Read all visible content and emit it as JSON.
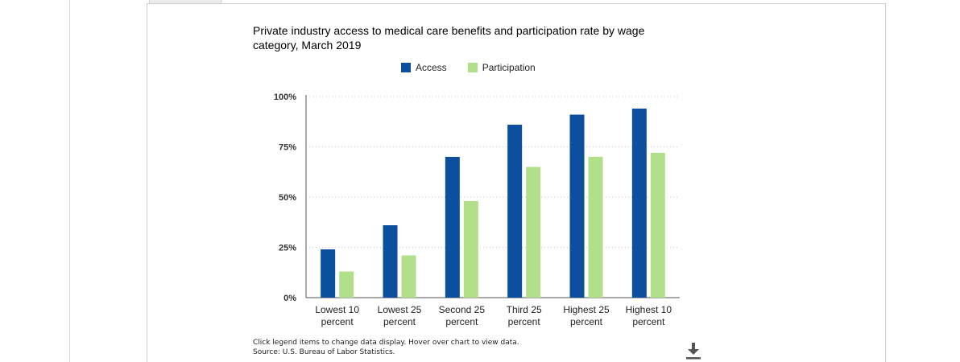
{
  "chart_title": "Private industry access to medical care benefits and participation rate by wage category, March 2019",
  "legend": [
    {
      "label": "Access",
      "color": "#0b4f9e"
    },
    {
      "label": "Participation",
      "color": "#b2df8a"
    }
  ],
  "notes": {
    "interaction": "Click legend items to change data display. Hover over chart to view data.",
    "source": "Source: U.S. Bureau of Labor Statistics."
  },
  "icons": {
    "download": "download-icon"
  },
  "chart_data": {
    "type": "bar",
    "title": "Private industry access to medical care benefits and participation rate by wage category, March 2019",
    "categories": [
      [
        "Lowest 10",
        "percent"
      ],
      [
        "Lowest 25",
        "percent"
      ],
      [
        "Second 25",
        "percent"
      ],
      [
        "Third 25",
        "percent"
      ],
      [
        "Highest 25",
        "percent"
      ],
      [
        "Highest 10",
        "percent"
      ]
    ],
    "series": [
      {
        "name": "Access",
        "color": "#0b4f9e",
        "values": [
          24,
          36,
          70,
          86,
          91,
          94
        ]
      },
      {
        "name": "Participation",
        "color": "#b2df8a",
        "values": [
          13,
          21,
          48,
          65,
          70,
          72
        ]
      }
    ],
    "ylim": [
      0,
      100
    ],
    "yticks": [
      {
        "value": 0,
        "label": "0%"
      },
      {
        "value": 25,
        "label": "25%"
      },
      {
        "value": 50,
        "label": "50%"
      },
      {
        "value": 75,
        "label": "75%"
      },
      {
        "value": 100,
        "label": "100%"
      }
    ],
    "grid": "dotted-horizontal",
    "legend_position": "top-center"
  }
}
